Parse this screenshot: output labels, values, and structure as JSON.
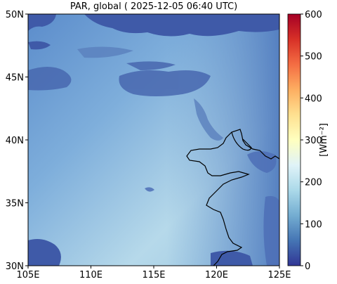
{
  "title": "PAR, global ( 2025-12-05 06:40 UTC)",
  "map": {
    "lon_ticks": [
      "105E",
      "110E",
      "115E",
      "120E",
      "125E"
    ],
    "lat_ticks": [
      "50N",
      "45N",
      "40N",
      "35N",
      "30N"
    ],
    "extent": {
      "lon": [
        105,
        125
      ],
      "lat": [
        30,
        50
      ]
    }
  },
  "colorbar": {
    "label": "[Wm⁻²]",
    "ticks": [
      "600",
      "500",
      "400",
      "300",
      "200",
      "100",
      "0"
    ],
    "range": [
      0,
      600
    ],
    "colormap": "RdYlBu_r",
    "colors": [
      "#313695",
      "#4575b4",
      "#74add1",
      "#abd9e9",
      "#e0f3f8",
      "#ffffbf",
      "#fee090",
      "#fdae61",
      "#f46d43",
      "#d73027",
      "#a50026"
    ]
  },
  "field": {
    "clear_sky_color": "#bcdcea",
    "cloud_color": "#3f5aa8",
    "base_color": "#6f9fd0"
  }
}
